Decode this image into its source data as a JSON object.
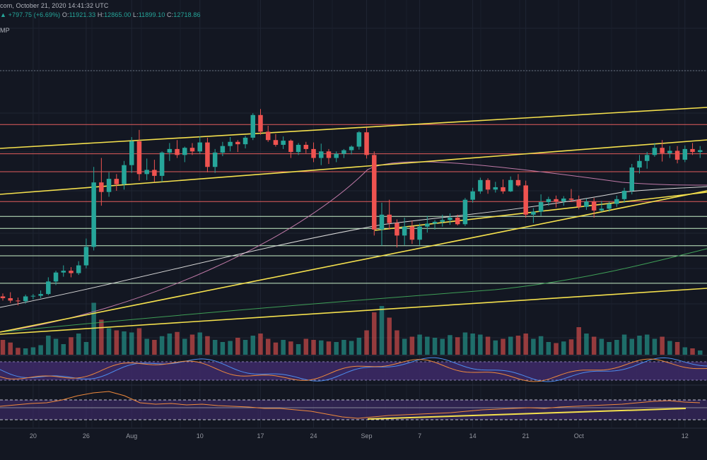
{
  "header": {
    "line1": "com, October 21, 2020 14:41:32 UTC",
    "change": "+797.75 (+6.69%)",
    "open_label": "O:",
    "open": "11921.33",
    "high_label": "H:",
    "high": "12865.00",
    "low_label": "L:",
    "low": "11899.10",
    "close_label": "C:",
    "close": "12718.86",
    "indicator": "MP"
  },
  "colors": {
    "background": "#131722",
    "up": "#26a69a",
    "down": "#ef5350",
    "resistance": "#e35d5d",
    "support": "#c8f0c8",
    "trendline": "#f4e04d",
    "ma_pink": "#c07aa8",
    "ma_white": "#d9d9d9",
    "ma_green": "#3f9f57",
    "rsi_bg": "#3e2a68",
    "stoch_fast": "#4d8df0",
    "stoch_slow": "#f08a3c"
  },
  "chart_data": {
    "type": "candlestick",
    "x_tick_labels": [
      {
        "i": 4,
        "label": "20"
      },
      {
        "i": 11,
        "label": "26"
      },
      {
        "i": 17,
        "label": "Aug"
      },
      {
        "i": 26,
        "label": "10"
      },
      {
        "i": 34,
        "label": "17"
      },
      {
        "i": 41,
        "label": "24"
      },
      {
        "i": 48,
        "label": "Sep"
      },
      {
        "i": 55,
        "label": "7"
      },
      {
        "i": 62,
        "label": "14"
      },
      {
        "i": 69,
        "label": "21"
      },
      {
        "i": 76,
        "label": "Oct"
      },
      {
        "i": 90,
        "label": "12"
      }
    ],
    "candles": [
      [
        9130,
        9180,
        9060,
        9100
      ],
      [
        9100,
        9200,
        9020,
        9060
      ],
      [
        9060,
        9110,
        8980,
        9050
      ],
      [
        9050,
        9160,
        9010,
        9130
      ],
      [
        9130,
        9170,
        9080,
        9140
      ],
      [
        9140,
        9230,
        9100,
        9170
      ],
      [
        9170,
        9450,
        9150,
        9380
      ],
      [
        9380,
        9560,
        9320,
        9530
      ],
      [
        9530,
        9650,
        9460,
        9560
      ],
      [
        9560,
        9620,
        9450,
        9520
      ],
      [
        9520,
        9720,
        9490,
        9650
      ],
      [
        9650,
        10100,
        9600,
        9960
      ],
      [
        9960,
        11300,
        9900,
        11040
      ],
      [
        11040,
        11450,
        10650,
        10880
      ],
      [
        10880,
        11210,
        10800,
        11100
      ],
      [
        11100,
        11180,
        10900,
        11010
      ],
      [
        11010,
        11400,
        10920,
        11330
      ],
      [
        11330,
        11800,
        11200,
        11730
      ],
      [
        11730,
        11920,
        11070,
        11180
      ],
      [
        11180,
        11440,
        11080,
        11250
      ],
      [
        11250,
        11420,
        11050,
        11150
      ],
      [
        11150,
        11560,
        11050,
        11540
      ],
      [
        11540,
        11700,
        11400,
        11600
      ],
      [
        11600,
        11750,
        11450,
        11500
      ],
      [
        11500,
        11640,
        11380,
        11620
      ],
      [
        11620,
        11700,
        11500,
        11560
      ],
      [
        11560,
        11810,
        11520,
        11710
      ],
      [
        11710,
        11790,
        11210,
        11300
      ],
      [
        11300,
        11600,
        11200,
        11540
      ],
      [
        11540,
        11720,
        11480,
        11650
      ],
      [
        11650,
        11800,
        11560,
        11720
      ],
      [
        11720,
        11750,
        11550,
        11680
      ],
      [
        11680,
        11820,
        11610,
        11790
      ],
      [
        11790,
        12200,
        11750,
        12170
      ],
      [
        12170,
        12270,
        11840,
        11890
      ],
      [
        11890,
        11990,
        11720,
        11750
      ],
      [
        11750,
        11850,
        11640,
        11670
      ],
      [
        11670,
        11810,
        11600,
        11740
      ],
      [
        11740,
        11760,
        11450,
        11550
      ],
      [
        11550,
        11700,
        11500,
        11670
      ],
      [
        11670,
        11720,
        11530,
        11600
      ],
      [
        11600,
        11710,
        11380,
        11450
      ],
      [
        11450,
        11690,
        11330,
        11560
      ],
      [
        11560,
        11600,
        11350,
        11450
      ],
      [
        11450,
        11560,
        11380,
        11520
      ],
      [
        11520,
        11600,
        11450,
        11580
      ],
      [
        11580,
        11660,
        11510,
        11640
      ],
      [
        11640,
        11900,
        11590,
        11880
      ],
      [
        11880,
        11960,
        11440,
        11500
      ],
      [
        11500,
        11560,
        10150,
        10250
      ],
      [
        10250,
        10700,
        9980,
        10500
      ],
      [
        10500,
        10750,
        10250,
        10360
      ],
      [
        10360,
        10420,
        9950,
        10150
      ],
      [
        10150,
        10450,
        9990,
        10300
      ],
      [
        10300,
        10400,
        10010,
        10080
      ],
      [
        10080,
        10350,
        9990,
        10300
      ],
      [
        10300,
        10480,
        10200,
        10350
      ],
      [
        10350,
        10410,
        10250,
        10380
      ],
      [
        10380,
        10500,
        10300,
        10410
      ],
      [
        10410,
        10520,
        10330,
        10450
      ],
      [
        10450,
        10500,
        10320,
        10340
      ],
      [
        10340,
        10780,
        10310,
        10750
      ],
      [
        10750,
        10950,
        10700,
        10890
      ],
      [
        10890,
        11120,
        10850,
        11080
      ],
      [
        11080,
        11110,
        10850,
        10920
      ],
      [
        10920,
        11050,
        10870,
        10960
      ],
      [
        10960,
        11090,
        10850,
        10890
      ],
      [
        10890,
        11140,
        10880,
        11080
      ],
      [
        11080,
        11180,
        10970,
        10990
      ],
      [
        10990,
        11070,
        10450,
        10500
      ],
      [
        10500,
        10610,
        10360,
        10550
      ],
      [
        10550,
        10840,
        10480,
        10710
      ],
      [
        10710,
        10800,
        10650,
        10760
      ],
      [
        10760,
        10820,
        10620,
        10720
      ],
      [
        10720,
        10810,
        10650,
        10770
      ],
      [
        10770,
        10930,
        10710,
        10750
      ],
      [
        10750,
        10820,
        10590,
        10630
      ],
      [
        10630,
        10770,
        10580,
        10720
      ],
      [
        10720,
        10780,
        10450,
        10570
      ],
      [
        10570,
        10730,
        10550,
        10600
      ],
      [
        10600,
        10720,
        10550,
        10680
      ],
      [
        10680,
        10820,
        10630,
        10760
      ],
      [
        10760,
        10950,
        10700,
        10900
      ],
      [
        10900,
        11350,
        10840,
        11290
      ],
      [
        11290,
        11500,
        11190,
        11400
      ],
      [
        11400,
        11550,
        11270,
        11500
      ],
      [
        11500,
        11700,
        11470,
        11620
      ],
      [
        11620,
        11750,
        11390,
        11530
      ],
      [
        11530,
        11650,
        11450,
        11570
      ],
      [
        11570,
        11650,
        11360,
        11420
      ],
      [
        11420,
        11660,
        11380,
        11600
      ],
      [
        11600,
        11700,
        11500,
        11550
      ],
      [
        11550,
        11650,
        11450,
        11580
      ]
    ],
    "volume": [
      28,
      23,
      13,
      12,
      14,
      18,
      36,
      30,
      20,
      33,
      40,
      24,
      98,
      66,
      50,
      46,
      44,
      42,
      50,
      30,
      28,
      35,
      40,
      43,
      30,
      38,
      42,
      35,
      28,
      24,
      26,
      32,
      28,
      36,
      40,
      30,
      23,
      28,
      25,
      20,
      30,
      28,
      27,
      25,
      24,
      28,
      26,
      32,
      46,
      80,
      92,
      70,
      46,
      30,
      34,
      38,
      34,
      32,
      30,
      37,
      33,
      42,
      40,
      38,
      34,
      27,
      30,
      34,
      36,
      40,
      30,
      35,
      24,
      22,
      25,
      29,
      52,
      40,
      34,
      30,
      24,
      28,
      38,
      30,
      36,
      38,
      30,
      34,
      26,
      24,
      14,
      12,
      8
    ],
    "horizontal_levels": [
      {
        "price": 12010,
        "color": "#e35d5d"
      },
      {
        "price": 11520,
        "color": "#e35d5d"
      },
      {
        "price": 11220,
        "color": "#e35d5d"
      },
      {
        "price": 10720,
        "color": "#e35d5d"
      },
      {
        "price": 10470,
        "color": "#c8f0c8"
      },
      {
        "price": 10270,
        "color": "#c8f0c8"
      },
      {
        "price": 9980,
        "color": "#c8f0c8"
      },
      {
        "price": 9810,
        "color": "#c8f0c8"
      },
      {
        "price": 9350,
        "color": "#c8f0c8"
      }
    ],
    "ylim": [
      8200,
      12700
    ]
  }
}
